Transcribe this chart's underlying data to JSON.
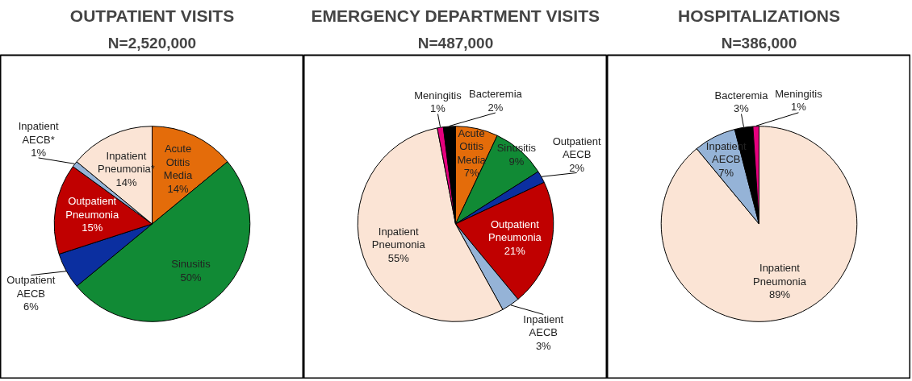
{
  "chart_data": [
    {
      "type": "pie",
      "title": "OUTPATIENT VISITS",
      "subtitle": "N=2,520,000",
      "categories": [
        "Acute Otitis Media",
        "Sinusitis",
        "Outpatient AECB",
        "Outpatient Pneumonia",
        "Inpatient AECB*",
        "Inpatient Pneumonia*"
      ],
      "values": [
        14,
        50,
        6,
        15,
        1,
        14
      ],
      "value_labels": [
        "14%",
        "50%",
        "6%",
        "15%",
        "1%",
        "14%"
      ],
      "colors": [
        "#e46c0a",
        "#118a35",
        "#0b2fa0",
        "#c00000",
        "#95b3d7",
        "#fbe4d5"
      ]
    },
    {
      "type": "pie",
      "title": "EMERGENCY DEPARTMENT VISITS",
      "subtitle": "N=487,000",
      "categories": [
        "Acute Otitis Media",
        "Sinusitis",
        "Outpatient AECB",
        "Outpatient Pneumonia",
        "Inpatient AECB",
        "Inpatient Pneumonia",
        "Meningitis",
        "Bacteremia"
      ],
      "values": [
        7,
        9,
        2,
        21,
        3,
        55,
        1,
        2
      ],
      "value_labels": [
        "7%",
        "9%",
        "2%",
        "21%",
        "3%",
        "55%",
        "1%",
        "2%"
      ],
      "colors": [
        "#e46c0a",
        "#118a35",
        "#0b2fa0",
        "#c00000",
        "#95b3d7",
        "#fbe4d5",
        "#e6007e",
        "#000000"
      ]
    },
    {
      "type": "pie",
      "title": "HOSPITALIZATIONS",
      "subtitle": "N=386,000",
      "categories": [
        "Inpatient Pneumonia",
        "Inpatient AECB",
        "Bacteremia",
        "Meningitis"
      ],
      "values": [
        89,
        7,
        3,
        1
      ],
      "value_labels": [
        "89%",
        "7%",
        "3%",
        "1%"
      ],
      "colors": [
        "#fbe4d5",
        "#95b3d7",
        "#000000",
        "#e6007e"
      ]
    }
  ]
}
